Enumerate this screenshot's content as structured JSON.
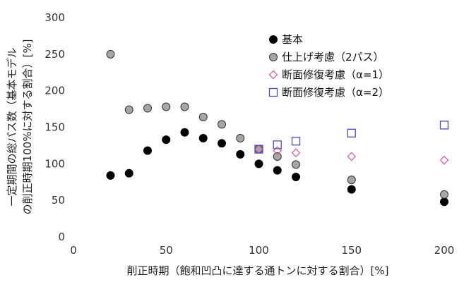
{
  "chart_data": {
    "type": "scatter",
    "xlabel": "削正時期（飽和凹凸に達する通トンに対する割合）[%]",
    "ylabel_line1": "一定期間の総パス数（基本モデル",
    "ylabel_line2": "の削正時期100%に対する割合）[%]",
    "xlim": [
      0,
      200
    ],
    "ylim": [
      0,
      300
    ],
    "x_ticks": [
      0,
      50,
      100,
      150,
      200
    ],
    "y_ticks": [
      0,
      50,
      100,
      150,
      200,
      250,
      300
    ],
    "grid": false,
    "legend_position": "top-right",
    "series": [
      {
        "name": "基本",
        "marker": "filled-circle",
        "color": "#000000",
        "x": [
          20,
          30,
          40,
          50,
          60,
          70,
          80,
          90,
          100,
          110,
          120,
          150,
          200
        ],
        "y": [
          84,
          87,
          118,
          133,
          143,
          135,
          128,
          113,
          100,
          91,
          82,
          65,
          48
        ]
      },
      {
        "name": "仕上げ考慮（2パス）",
        "marker": "gray-circle",
        "color": "#a6a6a6",
        "x": [
          20,
          30,
          40,
          50,
          60,
          70,
          80,
          90,
          100,
          110,
          120,
          150,
          200
        ],
        "y": [
          250,
          174,
          176,
          178,
          178,
          164,
          154,
          135,
          120,
          110,
          99,
          78,
          58
        ]
      },
      {
        "name": "断面修復考慮（α=1）",
        "marker": "open-diamond",
        "color": "#e0609e",
        "x": [
          100,
          110,
          120,
          150,
          200
        ],
        "y": [
          120,
          118,
          115,
          110,
          105
        ]
      },
      {
        "name": "断面修復考慮（α=2）",
        "marker": "open-square",
        "color": "#4a4ac8",
        "x": [
          100,
          110,
          120,
          150,
          200
        ],
        "y": [
          120,
          126,
          131,
          142,
          153
        ]
      }
    ]
  }
}
